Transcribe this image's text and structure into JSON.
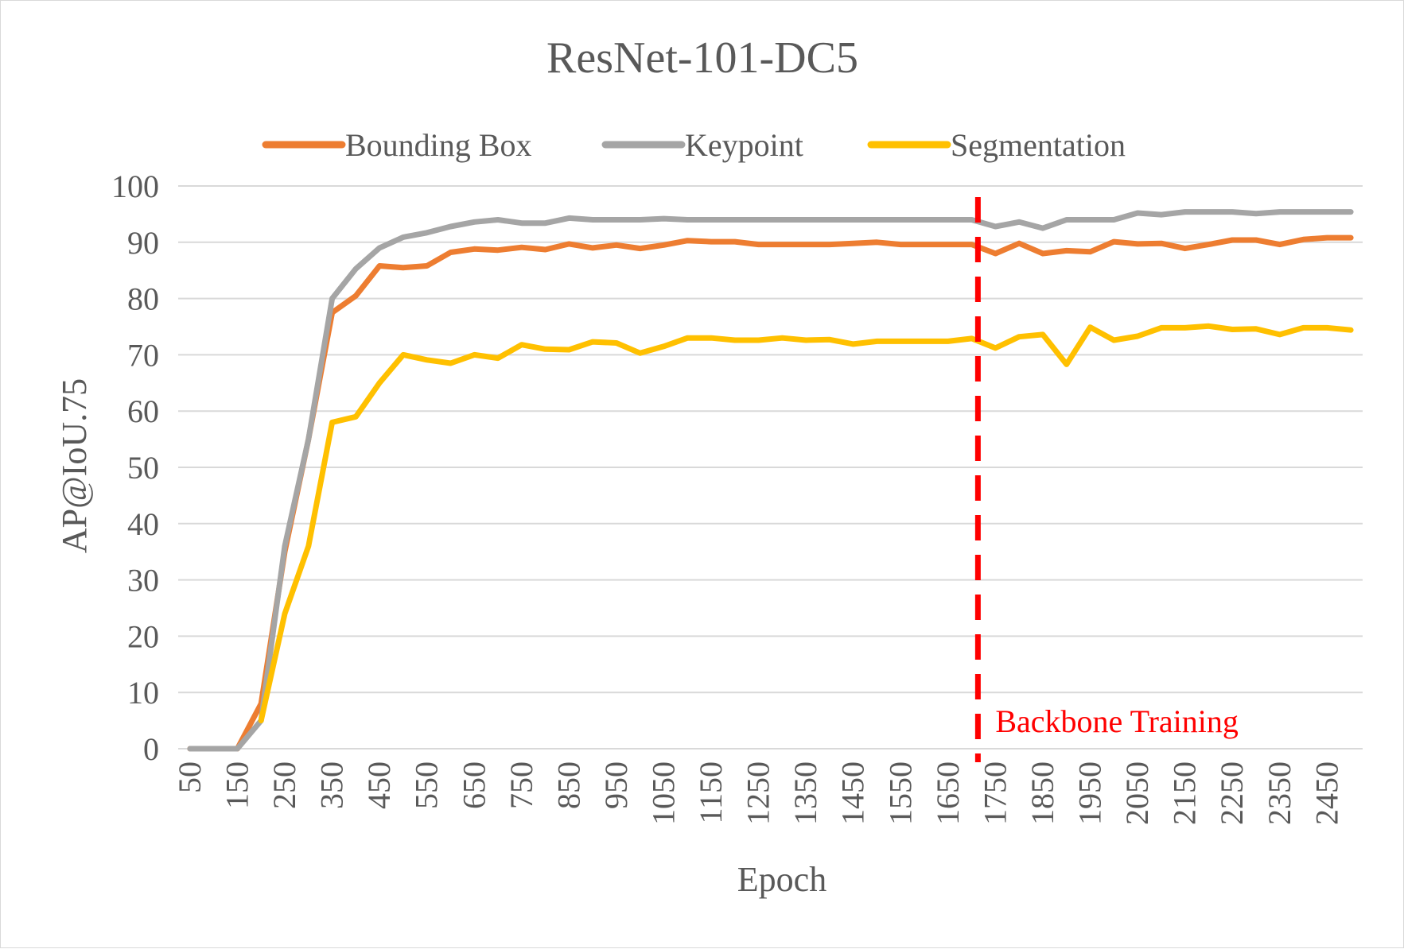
{
  "colors": {
    "bounding_box": "#ED7D31",
    "keypoint": "#A5A5A5",
    "segmentation": "#FFC000",
    "annotation": "#FF0000",
    "text": "#595959",
    "gridline": "#D9D9D9"
  },
  "chart_data": {
    "type": "line",
    "title": "ResNet-101-DC5",
    "xlabel": "Epoch",
    "ylabel": "AP@IoU.75",
    "ylim": [
      0,
      100
    ],
    "yticks": [
      0,
      10,
      20,
      30,
      40,
      50,
      60,
      70,
      80,
      90,
      100
    ],
    "x": [
      50,
      100,
      150,
      200,
      250,
      300,
      350,
      400,
      450,
      500,
      550,
      600,
      650,
      700,
      750,
      800,
      850,
      900,
      950,
      1000,
      1050,
      1100,
      1150,
      1200,
      1250,
      1300,
      1350,
      1400,
      1450,
      1500,
      1550,
      1600,
      1650,
      1700,
      1750,
      1800,
      1850,
      1900,
      1950,
      2000,
      2050,
      2100,
      2150,
      2200,
      2250,
      2300,
      2350,
      2400,
      2450,
      2500
    ],
    "x_tick_labels": [
      "50",
      "150",
      "250",
      "350",
      "450",
      "550",
      "650",
      "750",
      "850",
      "950",
      "1050",
      "1150",
      "1250",
      "1350",
      "1450",
      "1550",
      "1650",
      "1750",
      "1850",
      "1950",
      "2050",
      "2150",
      "2250",
      "2350",
      "2450"
    ],
    "grid": true,
    "legend_position": "top",
    "series": [
      {
        "name": "Bounding Box",
        "color": "#ED7D31",
        "values": [
          0,
          0,
          0,
          8,
          35,
          55,
          77.5,
          80.5,
          85.8,
          85.5,
          85.8,
          88.2,
          88.8,
          88.6,
          89.1,
          88.7,
          89.7,
          89.0,
          89.5,
          88.9,
          89.5,
          90.3,
          90.1,
          90.1,
          89.6,
          89.6,
          89.6,
          89.6,
          89.8,
          90.0,
          89.6,
          89.6,
          89.6,
          89.6,
          88.0,
          89.8,
          88.0,
          88.5,
          88.3,
          90.1,
          89.7,
          89.8,
          88.9,
          89.6,
          90.4,
          90.4,
          89.6,
          90.5,
          90.8,
          90.8
        ]
      },
      {
        "name": "Keypoint",
        "color": "#A5A5A5",
        "values": [
          0,
          0,
          0,
          5,
          36,
          55,
          80,
          85.3,
          89.0,
          90.9,
          91.7,
          92.8,
          93.6,
          94.0,
          93.4,
          93.4,
          94.3,
          94.0,
          94.0,
          94.0,
          94.2,
          94.0,
          94.0,
          94.0,
          94.0,
          94.0,
          94.0,
          94.0,
          94.0,
          94.0,
          94.0,
          94.0,
          94.0,
          94.0,
          92.8,
          93.6,
          92.5,
          94.0,
          94.0,
          94.0,
          95.2,
          94.9,
          95.4,
          95.4,
          95.4,
          95.1,
          95.4,
          95.4,
          95.4,
          95.4
        ]
      },
      {
        "name": "Segmentation",
        "color": "#FFC000",
        "values": [
          null,
          null,
          null,
          5,
          24,
          36,
          58,
          59,
          65,
          70,
          69.1,
          68.5,
          70.0,
          69.4,
          71.8,
          71.0,
          70.9,
          72.3,
          72.1,
          70.3,
          71.5,
          73.0,
          73.0,
          72.6,
          72.6,
          73.0,
          72.6,
          72.7,
          71.9,
          72.4,
          72.4,
          72.4,
          72.4,
          72.9,
          71.2,
          73.2,
          73.6,
          68.3,
          74.9,
          72.6,
          73.3,
          74.8,
          74.8,
          75.1,
          74.5,
          74.6,
          73.6,
          74.8,
          74.8,
          74.4
        ]
      }
    ],
    "annotations": [
      {
        "type": "vline",
        "x": 1713,
        "style": "dashed",
        "label": "Backbone Training",
        "color": "#FF0000"
      }
    ]
  }
}
